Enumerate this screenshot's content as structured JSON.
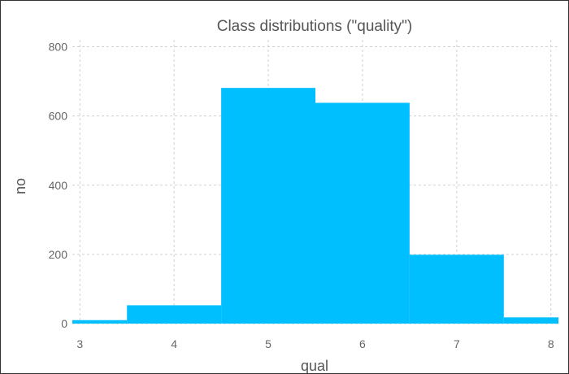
{
  "chart_data": {
    "type": "bar",
    "title": "Class distributions (\"quality\")",
    "xlabel": "qual",
    "ylabel": "no",
    "x": [
      3,
      4,
      5,
      6,
      7,
      8
    ],
    "values": [
      10,
      53,
      681,
      638,
      199,
      18
    ],
    "xlim": [
      2.92,
      8.08
    ],
    "ylim": [
      0,
      820
    ],
    "xticks": [
      3,
      4,
      5,
      6,
      7,
      8
    ],
    "yticks": [
      0,
      200,
      400,
      600,
      800
    ],
    "grid": true,
    "bar_color": "#00BFFF"
  }
}
